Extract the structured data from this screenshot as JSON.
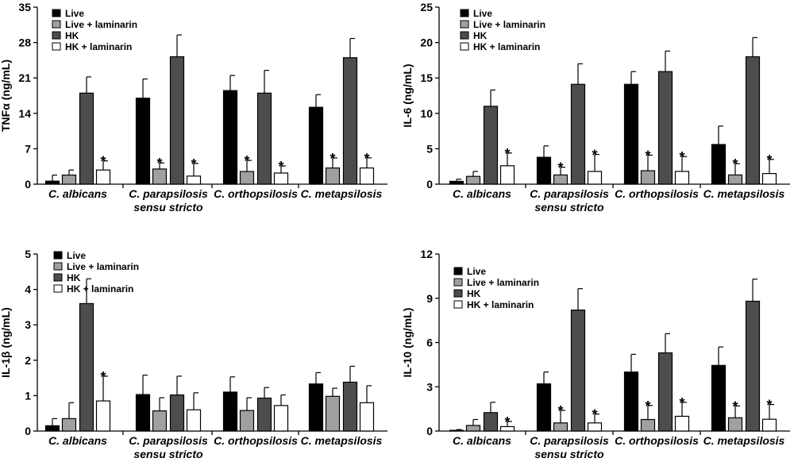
{
  "series_styles": [
    {
      "name": "Live",
      "color": "#000000"
    },
    {
      "name": "Live + laminarin",
      "color": "#a0a0a0"
    },
    {
      "name": "HK",
      "color": "#4d4d4d"
    },
    {
      "name": "HK + laminarin",
      "color": "#ffffff"
    }
  ],
  "chart_data": [
    {
      "type": "bar",
      "ylabel": "TNFα (ng/mL)",
      "ylim": [
        0,
        35
      ],
      "yticks": [
        0,
        7,
        14,
        21,
        28,
        35
      ],
      "categories": [
        [
          "C. albicans"
        ],
        [
          "C. parapsilosis",
          "sensu stricto"
        ],
        [
          "C. orthopsilosis"
        ],
        [
          "C. metapsilosis"
        ]
      ],
      "legend": [
        "Live",
        "Live + laminarin",
        "HK",
        "HK + laminarin"
      ],
      "series": [
        {
          "name": "Live",
          "values": [
            0.6,
            17,
            18.5,
            15.2
          ],
          "errors": [
            1.2,
            3.8,
            3.0,
            2.5
          ],
          "stars": [
            false,
            false,
            false,
            false
          ]
        },
        {
          "name": "Live + laminarin",
          "values": [
            1.8,
            3.0,
            2.5,
            3.2
          ],
          "errors": [
            1.0,
            1.2,
            2.2,
            2.0
          ],
          "stars": [
            false,
            true,
            true,
            true
          ]
        },
        {
          "name": "HK",
          "values": [
            18,
            25.2,
            18,
            25
          ],
          "errors": [
            3.2,
            4.3,
            4.5,
            3.8
          ],
          "stars": [
            false,
            false,
            false,
            false
          ]
        },
        {
          "name": "HK + laminarin",
          "values": [
            2.8,
            1.6,
            2.2,
            3.2
          ],
          "errors": [
            1.8,
            2.5,
            1.4,
            2.0
          ],
          "stars": [
            true,
            true,
            true,
            true
          ]
        }
      ]
    },
    {
      "type": "bar",
      "ylabel": "IL-6 (ng/mL)",
      "ylim": [
        0,
        25
      ],
      "yticks": [
        0,
        5,
        10,
        15,
        20,
        25
      ],
      "categories": [
        [
          "C. albicans"
        ],
        [
          "C. parapsilosis",
          "sensu stricto"
        ],
        [
          "C. orthopsilosis"
        ],
        [
          "C. metapsilosis"
        ]
      ],
      "legend": [
        "Live",
        "Live + laminarin",
        "HK",
        "HK + laminarin"
      ],
      "series": [
        {
          "name": "Live",
          "values": [
            0.4,
            3.8,
            14.1,
            5.6
          ],
          "errors": [
            0.3,
            1.6,
            1.8,
            2.6
          ],
          "stars": [
            false,
            false,
            false,
            false
          ]
        },
        {
          "name": "Live + laminarin",
          "values": [
            1.1,
            1.3,
            1.9,
            1.3
          ],
          "errors": [
            0.7,
            1.1,
            2.2,
            1.6
          ],
          "stars": [
            false,
            true,
            true,
            true
          ]
        },
        {
          "name": "HK",
          "values": [
            11,
            14.1,
            15.9,
            18
          ],
          "errors": [
            2.3,
            2.9,
            2.9,
            2.7
          ],
          "stars": [
            false,
            false,
            false,
            false
          ]
        },
        {
          "name": "HK + laminarin",
          "values": [
            2.6,
            1.8,
            1.8,
            1.5
          ],
          "errors": [
            1.8,
            2.4,
            2.1,
            2.0
          ],
          "stars": [
            true,
            true,
            true,
            true
          ]
        }
      ]
    },
    {
      "type": "bar",
      "ylabel": "IL-1β (ng/mL)",
      "ylim": [
        0,
        5
      ],
      "yticks": [
        0,
        1,
        2,
        3,
        4,
        5
      ],
      "categories": [
        [
          "C. albicans"
        ],
        [
          "C. parapsilosis",
          "sensu stricto"
        ],
        [
          "C. orthopsilosis"
        ],
        [
          "C. metapsilosis"
        ]
      ],
      "legend": [
        "Live",
        "Live + laminarin",
        "HK",
        "HK + laminarin"
      ],
      "series": [
        {
          "name": "Live",
          "values": [
            0.15,
            1.03,
            1.1,
            1.33
          ],
          "errors": [
            0.2,
            0.55,
            0.43,
            0.32
          ],
          "stars": [
            false,
            false,
            false,
            false
          ]
        },
        {
          "name": "Live + laminarin",
          "values": [
            0.35,
            0.57,
            0.58,
            0.98
          ],
          "errors": [
            0.45,
            0.37,
            0.36,
            0.23
          ],
          "stars": [
            false,
            false,
            false,
            false
          ]
        },
        {
          "name": "HK",
          "values": [
            3.6,
            1.02,
            0.93,
            1.38
          ],
          "errors": [
            0.7,
            0.53,
            0.3,
            0.45
          ],
          "stars": [
            false,
            false,
            false,
            false
          ]
        },
        {
          "name": "HK + laminarin",
          "values": [
            0.85,
            0.6,
            0.72,
            0.8
          ],
          "errors": [
            0.7,
            0.48,
            0.3,
            0.48
          ],
          "stars": [
            true,
            false,
            false,
            false
          ]
        }
      ]
    },
    {
      "type": "bar",
      "ylabel": "IL-10 (ng/mL)",
      "ylim": [
        0,
        12
      ],
      "yticks": [
        0,
        3,
        6,
        9,
        12
      ],
      "categories": [
        [
          "C. albicans"
        ],
        [
          "C. parapsilosis",
          "sensu stricto"
        ],
        [
          "C. orthopsilosis"
        ],
        [
          "C. metapsilosis"
        ]
      ],
      "legend": [
        "Live",
        "Live + laminarin",
        "HK",
        "HK + laminarin"
      ],
      "series": [
        {
          "name": "Live",
          "values": [
            0.05,
            3.2,
            4.0,
            4.45
          ],
          "errors": [
            0.05,
            0.8,
            1.2,
            1.25
          ],
          "stars": [
            false,
            false,
            false,
            false
          ]
        },
        {
          "name": "Live + laminarin",
          "values": [
            0.38,
            0.55,
            0.78,
            0.9
          ],
          "errors": [
            0.4,
            0.85,
            0.95,
            0.8
          ],
          "stars": [
            false,
            true,
            true,
            true
          ]
        },
        {
          "name": "HK",
          "values": [
            1.25,
            8.2,
            5.3,
            8.8
          ],
          "errors": [
            0.7,
            1.45,
            1.3,
            1.5
          ],
          "stars": [
            false,
            false,
            false,
            false
          ]
        },
        {
          "name": "HK + laminarin",
          "values": [
            0.3,
            0.55,
            1.0,
            0.8
          ],
          "errors": [
            0.35,
            0.6,
            0.95,
            1.0
          ],
          "stars": [
            true,
            true,
            true,
            true
          ]
        }
      ]
    }
  ]
}
